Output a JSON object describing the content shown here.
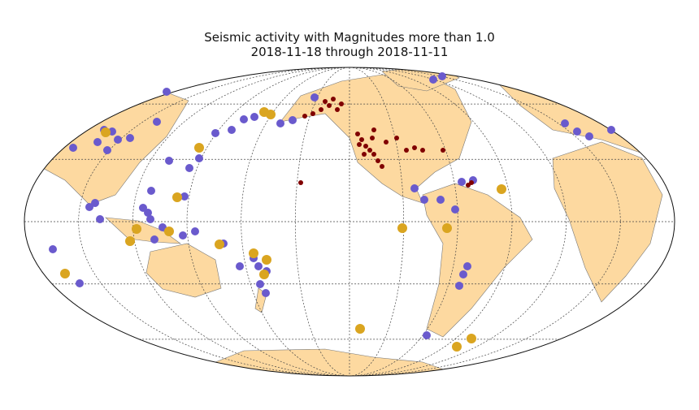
{
  "title": {
    "line1": "Seismic activity with Magnitudes more than 1.0",
    "line2": "2018-11-18 through 2018-11-11"
  }
}
